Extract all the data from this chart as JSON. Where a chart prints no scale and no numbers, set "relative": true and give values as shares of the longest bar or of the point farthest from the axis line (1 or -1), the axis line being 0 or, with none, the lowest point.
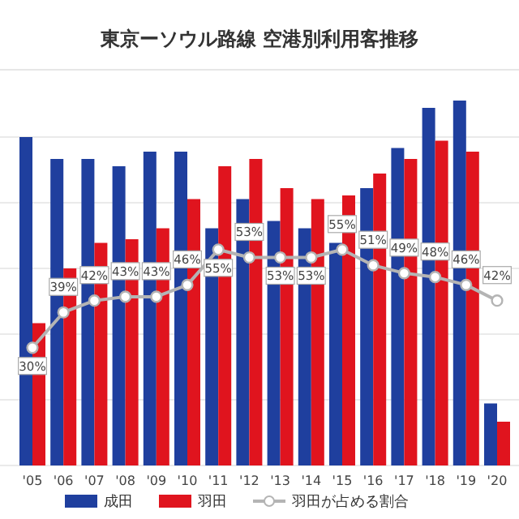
{
  "chart_data": [
    {
      "type": "bar",
      "title": "東京ーソウル路線 空港別利用客推移",
      "relative": true,
      "grid": "y",
      "legend": "bottom",
      "categories": [
        "'05",
        "'06",
        "'07",
        "'08",
        "'09",
        "'10",
        "'11",
        "'12",
        "'13",
        "'14",
        "'15",
        "'16",
        "'17",
        "'18",
        "'19",
        "'20"
      ],
      "series": [
        {
          "name": "成田",
          "color": "#1f3f9e",
          "values": [
            0.9,
            0.84,
            0.84,
            0.82,
            0.86,
            0.86,
            0.65,
            0.73,
            0.67,
            0.65,
            0.61,
            0.76,
            0.87,
            0.98,
            1.0,
            0.17
          ]
        },
        {
          "name": "羽田",
          "color": "#e0141e",
          "values": [
            0.39,
            0.54,
            0.61,
            0.62,
            0.65,
            0.73,
            0.82,
            0.84,
            0.76,
            0.73,
            0.74,
            0.8,
            0.84,
            0.89,
            0.86,
            0.12
          ]
        }
      ]
    },
    {
      "type": "line",
      "legend": "bottom",
      "marker": "circle",
      "categories": [
        null,
        null,
        null,
        null,
        null,
        null,
        null,
        null,
        null,
        null,
        null,
        null,
        null,
        null,
        null,
        null
      ],
      "series": [
        {
          "name": "羽田が占める割合",
          "color": "#b4b4b4",
          "values": [
            30,
            39,
            42,
            43,
            43,
            46,
            55,
            53,
            53,
            53,
            55,
            51,
            49,
            48,
            46,
            42
          ],
          "value_labels": [
            "30%",
            "39%",
            "42%",
            "43%",
            "43%",
            "46%",
            "55%",
            "53%",
            "53%",
            "53%",
            "55%",
            "51%",
            "49%",
            "48%",
            "46%",
            "42%"
          ]
        }
      ]
    }
  ]
}
